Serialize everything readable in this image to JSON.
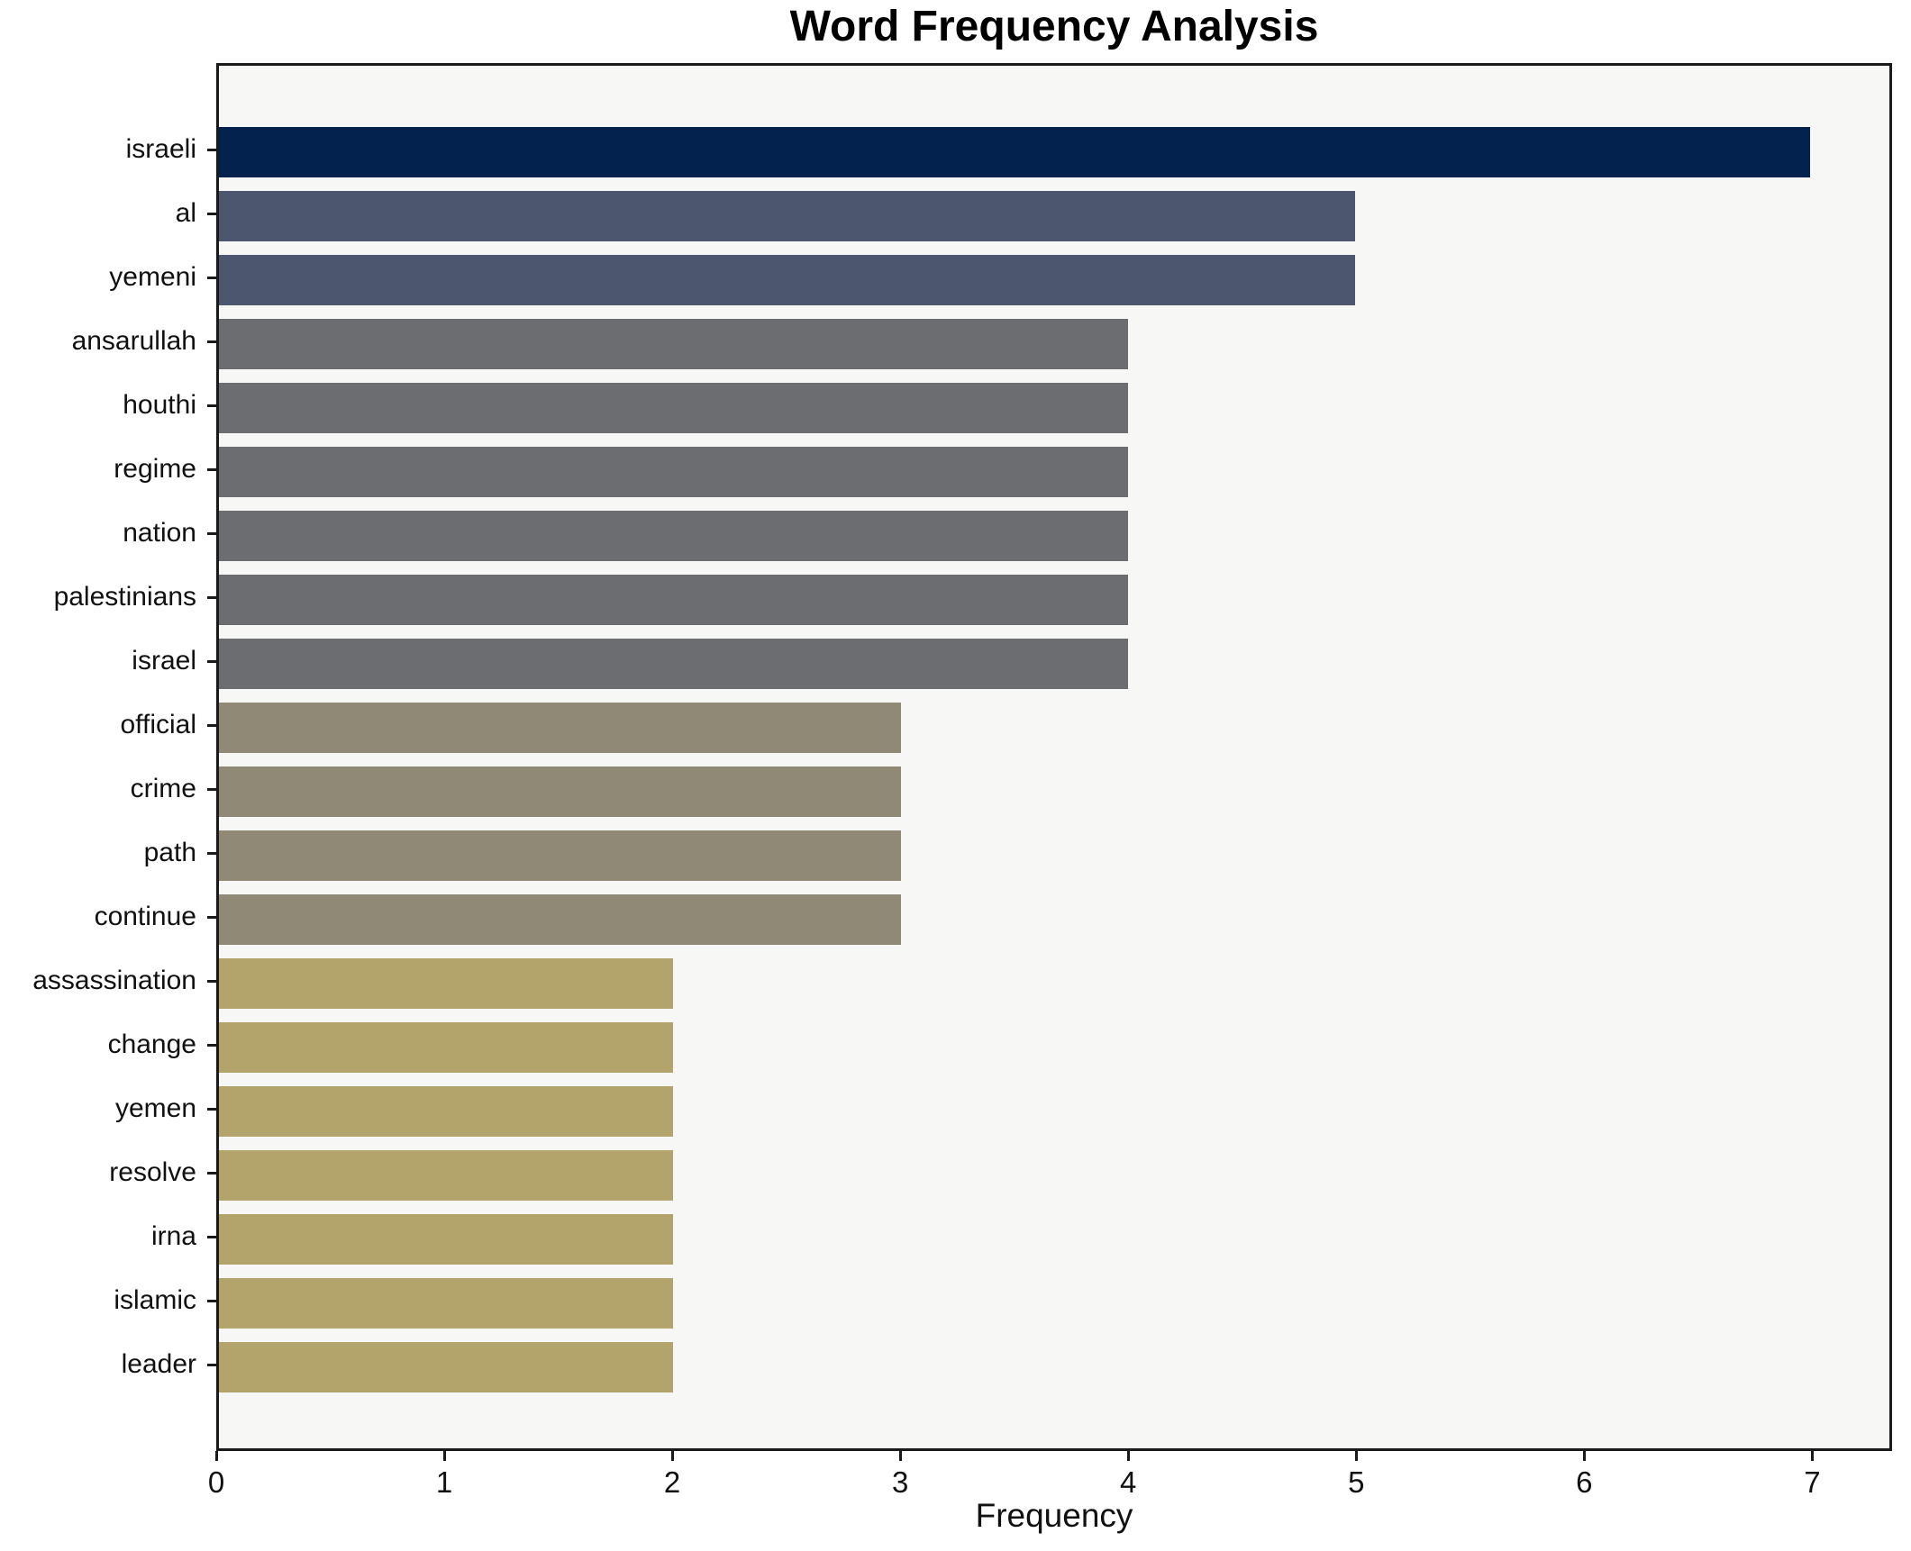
{
  "chart_data": {
    "type": "bar",
    "orientation": "horizontal",
    "title": "Word Frequency Analysis",
    "xlabel": "Frequency",
    "ylabel": "",
    "categories": [
      "israeli",
      "al",
      "yemeni",
      "ansarullah",
      "houthi",
      "regime",
      "nation",
      "palestinians",
      "israel",
      "official",
      "crime",
      "path",
      "continue",
      "assassination",
      "change",
      "yemen",
      "resolve",
      "irna",
      "islamic",
      "leader"
    ],
    "values": [
      7,
      5,
      5,
      4,
      4,
      4,
      4,
      4,
      4,
      3,
      3,
      3,
      3,
      2,
      2,
      2,
      2,
      2,
      2,
      2
    ],
    "bar_colors": [
      "#03234e",
      "#4d566f",
      "#4d566f",
      "#6c6d71",
      "#6c6d71",
      "#6c6d71",
      "#6c6d71",
      "#6c6d71",
      "#6c6d71",
      "#8f8976",
      "#8f8976",
      "#8f8976",
      "#8f8976",
      "#b2a46b",
      "#b2a46b",
      "#b2a46b",
      "#b2a46b",
      "#b2a46b",
      "#b2a46b",
      "#b2a46b"
    ],
    "x_ticks": [
      0,
      1,
      2,
      3,
      4,
      5,
      6,
      7
    ],
    "xlim": [
      0,
      7.35
    ],
    "grid": false,
    "legend": null,
    "plot_background": "#f7f7f5",
    "figure_background": "#ffffff",
    "spine_color": "#1a1a1a"
  }
}
